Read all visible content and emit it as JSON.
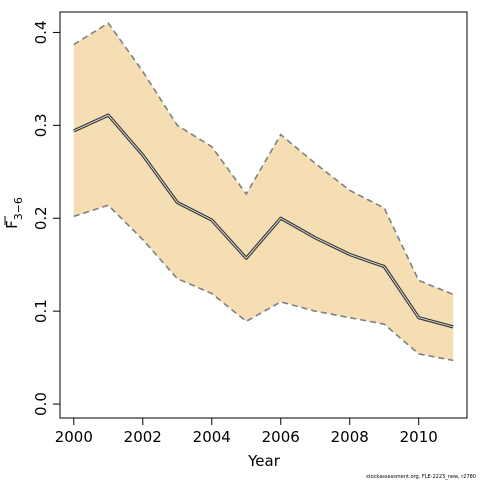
{
  "chart_data": {
    "type": "line",
    "xlabel": "Year",
    "ylabel_main": "F",
    "ylabel_sub": "3−6",
    "xlim": [
      1999.6,
      2011.4
    ],
    "ylim": [
      -0.015,
      0.422
    ],
    "x_ticks": [
      2000,
      2002,
      2004,
      2006,
      2008,
      2010
    ],
    "y_ticks": [
      0.0,
      0.1,
      0.2,
      0.3,
      0.4
    ],
    "y_tick_labels": [
      "0.0",
      "0.1",
      "0.2",
      "0.3",
      "0.4"
    ],
    "x": [
      2000,
      2001,
      2002,
      2003,
      2004,
      2005,
      2006,
      2007,
      2008,
      2009,
      2010,
      2011
    ],
    "series": [
      {
        "values": [
          0.294,
          0.311,
          0.268,
          0.217,
          0.198,
          0.157,
          0.2,
          0.179,
          0.161,
          0.148,
          0.093,
          0.083
        ]
      }
    ],
    "band_upper": [
      0.387,
      0.41,
      0.358,
      0.3,
      0.277,
      0.226,
      0.29,
      0.259,
      0.23,
      0.211,
      0.133,
      0.118
    ],
    "band_lower": [
      0.202,
      0.214,
      0.177,
      0.135,
      0.119,
      0.089,
      0.11,
      0.1,
      0.093,
      0.086,
      0.054,
      0.047
    ],
    "grid": false,
    "colors": {
      "band": "#f5deb3",
      "band_edge": "#7f7f7f",
      "line": "#333333"
    }
  },
  "footer": "stockassessment.org, FLE-2223_new, r2780"
}
